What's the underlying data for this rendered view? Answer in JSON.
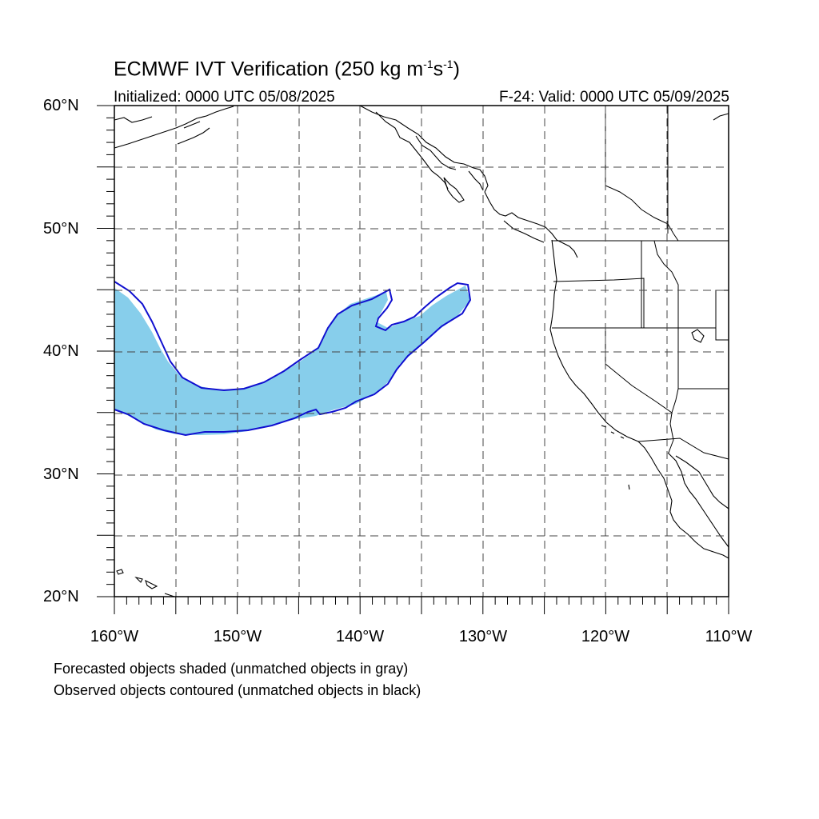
{
  "title": {
    "main": "ECMWF IVT Verification (250 kg m",
    "exp1": "-1",
    "mid": "s",
    "exp2": "-1",
    "close": ")"
  },
  "subtitle_left": "Initialized: 0000 UTC 05/08/2025",
  "subtitle_right": "F-24: Valid: 0000 UTC 05/09/2025",
  "lat_labels": [
    "60°N",
    "50°N",
    "40°N",
    "30°N",
    "20°N"
  ],
  "lon_labels": [
    "160°W",
    "150°W",
    "140°W",
    "130°W",
    "120°W",
    "110°W"
  ],
  "captions": [
    "Forecasted objects shaded (unmatched objects in gray)",
    "Observed objects contoured (unmatched objects in black)"
  ],
  "map": {
    "lon_range": [
      -160,
      -110
    ],
    "lat_range": [
      20,
      60
    ],
    "grid_style": "dashed",
    "forecast_fill_color": "#87CEEB",
    "observed_contour_color": "#1010D0",
    "coastline_color": "#000000"
  }
}
